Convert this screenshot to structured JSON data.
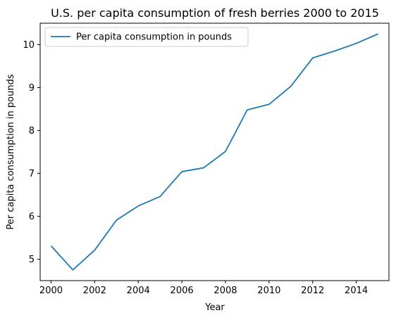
{
  "chart_data": {
    "type": "line",
    "title": "U.S. per capita consumption of fresh berries 2000 to 2015",
    "xlabel": "Year",
    "ylabel": "Per capita consumption in pounds",
    "x": [
      2000,
      2001,
      2002,
      2003,
      2004,
      2005,
      2006,
      2007,
      2008,
      2009,
      2010,
      2011,
      2012,
      2013,
      2014,
      2015
    ],
    "series": [
      {
        "name": "Per capita consumption in pounds",
        "color": "#1f77b4",
        "values": [
          5.31,
          4.75,
          5.21,
          5.91,
          6.24,
          6.46,
          7.04,
          7.13,
          7.51,
          8.48,
          8.61,
          9.03,
          9.69,
          9.85,
          10.03,
          10.25
        ]
      }
    ],
    "xlim": [
      1999.5,
      2015.5
    ],
    "ylim": [
      4.5,
      10.5
    ],
    "x_ticks": [
      "2000",
      "2002",
      "2004",
      "2006",
      "2008",
      "2010",
      "2012",
      "2014"
    ],
    "y_ticks": [
      "5",
      "6",
      "7",
      "8",
      "9",
      "10"
    ],
    "grid": false,
    "legend_position": "top-left"
  }
}
